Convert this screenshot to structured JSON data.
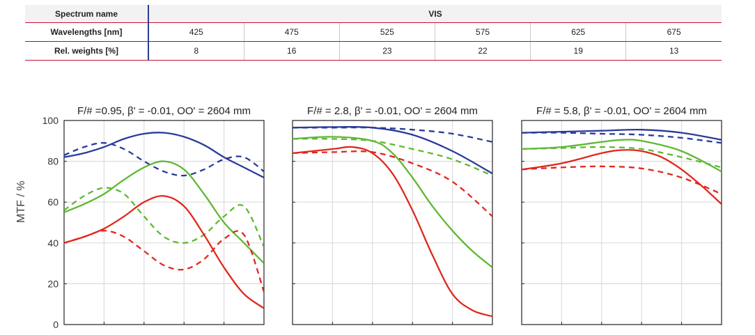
{
  "table": {
    "spectrum_name_label": "Spectrum name",
    "spectrum_name_value": "VIS",
    "wavelengths_label": "Wavelengths [nm]",
    "wavelengths": [
      "425",
      "475",
      "525",
      "575",
      "625",
      "675"
    ],
    "weights_label": "Rel. weights [%]",
    "weights": [
      "8",
      "16",
      "23",
      "22",
      "19",
      "13"
    ]
  },
  "colors": {
    "blue": "#2a3b9a",
    "green": "#5fb832",
    "red": "#e0281c",
    "grid": "#dcdcdc",
    "frame": "#222222"
  },
  "chart_data": [
    {
      "type": "line",
      "title": "F/# =0.95, β' = -0.01, OO' = 2604 mm",
      "ylabel": "MTF / %",
      "ylim": [
        0,
        100
      ],
      "yticks": [
        "0",
        "20",
        "40",
        "60",
        "80",
        "100"
      ],
      "xlim": [
        0,
        1
      ],
      "grid": true,
      "series": [
        {
          "color": "blue",
          "style": "solid",
          "points": [
            [
              0,
              82
            ],
            [
              0.1,
              84
            ],
            [
              0.2,
              87
            ],
            [
              0.3,
              91
            ],
            [
              0.4,
              93.5
            ],
            [
              0.5,
              94
            ],
            [
              0.6,
              92
            ],
            [
              0.7,
              88
            ],
            [
              0.8,
              82
            ],
            [
              0.9,
              77
            ],
            [
              1,
              72
            ]
          ]
        },
        {
          "color": "blue",
          "style": "dashed",
          "points": [
            [
              0,
              83
            ],
            [
              0.1,
              87
            ],
            [
              0.2,
              89
            ],
            [
              0.3,
              86
            ],
            [
              0.4,
              80
            ],
            [
              0.5,
              75
            ],
            [
              0.6,
              73
            ],
            [
              0.7,
              76
            ],
            [
              0.8,
              81
            ],
            [
              0.9,
              82
            ],
            [
              1,
              75
            ]
          ]
        },
        {
          "color": "green",
          "style": "solid",
          "points": [
            [
              0,
              55
            ],
            [
              0.1,
              59
            ],
            [
              0.2,
              64
            ],
            [
              0.3,
              71
            ],
            [
              0.4,
              77
            ],
            [
              0.5,
              80
            ],
            [
              0.6,
              76
            ],
            [
              0.7,
              64
            ],
            [
              0.8,
              50
            ],
            [
              0.9,
              40
            ],
            [
              1,
              30
            ]
          ]
        },
        {
          "color": "green",
          "style": "dashed",
          "points": [
            [
              0,
              56
            ],
            [
              0.1,
              63
            ],
            [
              0.2,
              67
            ],
            [
              0.3,
              64
            ],
            [
              0.4,
              53
            ],
            [
              0.5,
              43
            ],
            [
              0.6,
              40
            ],
            [
              0.7,
              44
            ],
            [
              0.8,
              53
            ],
            [
              0.9,
              58
            ],
            [
              1,
              38
            ]
          ]
        },
        {
          "color": "red",
          "style": "solid",
          "points": [
            [
              0,
              40
            ],
            [
              0.1,
              43
            ],
            [
              0.2,
              47
            ],
            [
              0.3,
              53
            ],
            [
              0.4,
              60
            ],
            [
              0.5,
              63
            ],
            [
              0.6,
              58
            ],
            [
              0.7,
              44
            ],
            [
              0.8,
              28
            ],
            [
              0.9,
              15
            ],
            [
              1,
              8
            ]
          ]
        },
        {
          "color": "red",
          "style": "dashed",
          "points": [
            [
              0,
              40
            ],
            [
              0.1,
              43
            ],
            [
              0.2,
              46
            ],
            [
              0.3,
              43
            ],
            [
              0.4,
              36
            ],
            [
              0.5,
              29
            ],
            [
              0.6,
              27
            ],
            [
              0.7,
              32
            ],
            [
              0.8,
              42
            ],
            [
              0.9,
              44
            ],
            [
              1,
              16
            ]
          ]
        }
      ]
    },
    {
      "type": "line",
      "title": "F/# = 2.8, β' = -0.01, OO' = 2604 mm",
      "ylim": [
        0,
        100
      ],
      "xlim": [
        0,
        1
      ],
      "grid": true,
      "series": [
        {
          "color": "blue",
          "style": "solid",
          "points": [
            [
              0,
              96.5
            ],
            [
              0.2,
              96.8
            ],
            [
              0.4,
              96.5
            ],
            [
              0.6,
              93
            ],
            [
              0.8,
              85
            ],
            [
              1,
              74
            ]
          ]
        },
        {
          "color": "blue",
          "style": "dashed",
          "points": [
            [
              0,
              96.5
            ],
            [
              0.2,
              96.5
            ],
            [
              0.4,
              96.5
            ],
            [
              0.6,
              95.5
            ],
            [
              0.8,
              93.5
            ],
            [
              1,
              89.5
            ]
          ]
        },
        {
          "color": "green",
          "style": "solid",
          "points": [
            [
              0,
              91
            ],
            [
              0.2,
              92
            ],
            [
              0.4,
              90
            ],
            [
              0.5,
              84
            ],
            [
              0.6,
              72
            ],
            [
              0.7,
              58
            ],
            [
              0.8,
              46
            ],
            [
              0.9,
              36
            ],
            [
              1,
              28
            ]
          ]
        },
        {
          "color": "green",
          "style": "dashed",
          "points": [
            [
              0,
              91
            ],
            [
              0.2,
              91
            ],
            [
              0.4,
              90
            ],
            [
              0.6,
              86
            ],
            [
              0.8,
              81
            ],
            [
              1,
              73
            ]
          ]
        },
        {
          "color": "red",
          "style": "solid",
          "points": [
            [
              0,
              84
            ],
            [
              0.2,
              86
            ],
            [
              0.3,
              87
            ],
            [
              0.4,
              84
            ],
            [
              0.5,
              74
            ],
            [
              0.6,
              56
            ],
            [
              0.7,
              34
            ],
            [
              0.8,
              15
            ],
            [
              0.9,
              7
            ],
            [
              1,
              4
            ]
          ]
        },
        {
          "color": "red",
          "style": "dashed",
          "points": [
            [
              0,
              84
            ],
            [
              0.2,
              84.5
            ],
            [
              0.4,
              84.5
            ],
            [
              0.6,
              79
            ],
            [
              0.8,
              70
            ],
            [
              1,
              53
            ]
          ]
        }
      ]
    },
    {
      "type": "line",
      "title": "F/# = 5.8, β' = -0.01, OO' = 2604 mm",
      "ylim": [
        0,
        100
      ],
      "xlim": [
        0,
        1
      ],
      "grid": true,
      "series": [
        {
          "color": "blue",
          "style": "solid",
          "points": [
            [
              0,
              94
            ],
            [
              0.2,
              94.5
            ],
            [
              0.4,
              95
            ],
            [
              0.6,
              95.5
            ],
            [
              0.8,
              94
            ],
            [
              1,
              90.5
            ]
          ]
        },
        {
          "color": "blue",
          "style": "dashed",
          "points": [
            [
              0,
              94
            ],
            [
              0.2,
              94
            ],
            [
              0.4,
              93.5
            ],
            [
              0.6,
              93
            ],
            [
              0.8,
              91.5
            ],
            [
              1,
              89
            ]
          ]
        },
        {
          "color": "green",
          "style": "solid",
          "points": [
            [
              0,
              86
            ],
            [
              0.2,
              87
            ],
            [
              0.4,
              89.5
            ],
            [
              0.5,
              90.5
            ],
            [
              0.6,
              90
            ],
            [
              0.8,
              85
            ],
            [
              1,
              75
            ]
          ]
        },
        {
          "color": "green",
          "style": "dashed",
          "points": [
            [
              0,
              86
            ],
            [
              0.2,
              86.5
            ],
            [
              0.4,
              87
            ],
            [
              0.6,
              86
            ],
            [
              0.8,
              82
            ],
            [
              1,
              77
            ]
          ]
        },
        {
          "color": "red",
          "style": "solid",
          "points": [
            [
              0,
              76
            ],
            [
              0.2,
              79
            ],
            [
              0.4,
              84
            ],
            [
              0.5,
              85.5
            ],
            [
              0.6,
              85
            ],
            [
              0.7,
              82
            ],
            [
              0.8,
              76
            ],
            [
              0.9,
              68
            ],
            [
              1,
              59
            ]
          ]
        },
        {
          "color": "red",
          "style": "dashed",
          "points": [
            [
              0,
              76
            ],
            [
              0.2,
              77
            ],
            [
              0.4,
              77.5
            ],
            [
              0.6,
              76.5
            ],
            [
              0.8,
              72
            ],
            [
              1,
              64
            ]
          ]
        }
      ]
    }
  ]
}
